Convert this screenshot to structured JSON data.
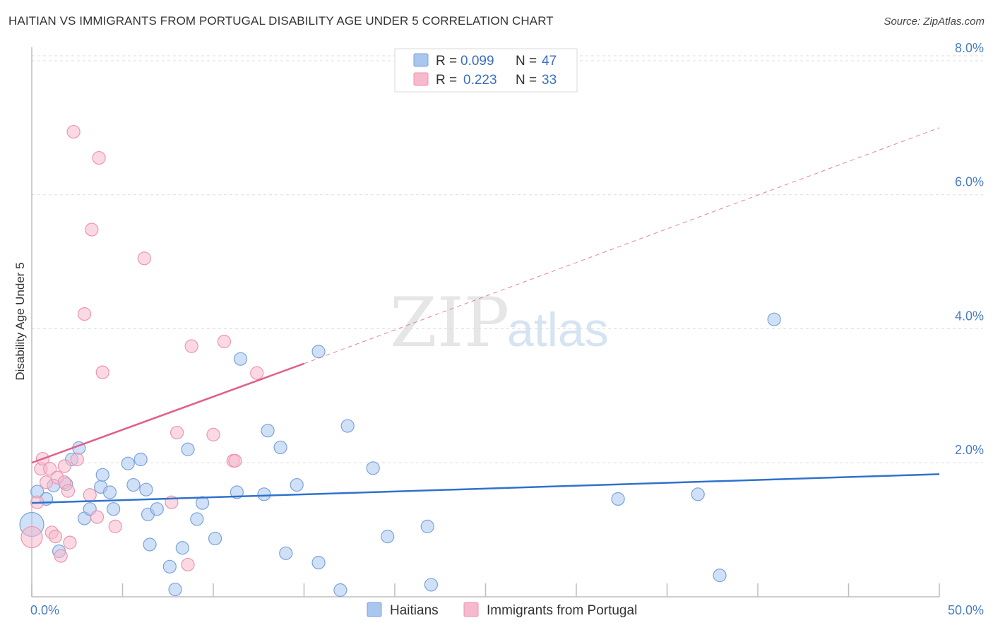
{
  "header": {
    "title": "HAITIAN VS IMMIGRANTS FROM PORTUGAL DISABILITY AGE UNDER 5 CORRELATION CHART",
    "source": "Source: ZipAtlas.com"
  },
  "watermark": {
    "part1": "ZIP",
    "part2": "atlas"
  },
  "legend": {
    "r_label": "R =",
    "n_label": "N =",
    "rows": [
      {
        "r": "0.099",
        "n": "47"
      },
      {
        "r": "0.223",
        "n": "33"
      }
    ]
  },
  "colors": {
    "haitians_fill": "#a9c6ee",
    "haitians_stroke": "#7aa3dd",
    "haitians_line": "#2f72cc",
    "portugal_fill": "#f7b9cc",
    "portugal_stroke": "#ee94b0",
    "portugal_line": "#e0608c",
    "axis_text": "#4a7cc4",
    "grid": "#dddddd"
  },
  "chart_data": {
    "type": "scatter",
    "title": "HAITIAN VS IMMIGRANTS FROM PORTUGAL DISABILITY AGE UNDER 5 CORRELATION CHART",
    "xlabel": "",
    "ylabel": "Disability Age Under 5",
    "xlim": [
      0,
      50
    ],
    "ylim": [
      0,
      8.2
    ],
    "x_tick_labels": [
      {
        "value": 0,
        "label": "0.0%"
      },
      {
        "value": 50,
        "label": "50.0%"
      }
    ],
    "y_tick_labels": [
      {
        "value": 2,
        "label": "2.0%"
      },
      {
        "value": 4,
        "label": "4.0%"
      },
      {
        "value": 6,
        "label": "6.0%"
      },
      {
        "value": 8,
        "label": "8.0%"
      }
    ],
    "grid": true,
    "legend_position": "top-center",
    "series": [
      {
        "name": "Haitians",
        "color": "#a9c6ee",
        "r": 0.099,
        "n": 47,
        "trend": {
          "x": [
            0,
            50
          ],
          "y": [
            1.4,
            1.83
          ],
          "style": "solid"
        },
        "points": [
          [
            0.0,
            1.08
          ],
          [
            0.3,
            1.57
          ],
          [
            0.8,
            1.46
          ],
          [
            1.2,
            1.66
          ],
          [
            1.5,
            0.68
          ],
          [
            1.9,
            1.68
          ],
          [
            2.2,
            2.05
          ],
          [
            2.6,
            2.22
          ],
          [
            2.9,
            1.17
          ],
          [
            3.2,
            1.31
          ],
          [
            3.8,
            1.64
          ],
          [
            3.9,
            1.82
          ],
          [
            4.3,
            1.56
          ],
          [
            4.5,
            1.31
          ],
          [
            5.3,
            1.99
          ],
          [
            5.6,
            1.67
          ],
          [
            6.0,
            2.05
          ],
          [
            6.3,
            1.6
          ],
          [
            6.4,
            1.23
          ],
          [
            6.5,
            0.78
          ],
          [
            6.9,
            1.31
          ],
          [
            7.6,
            0.45
          ],
          [
            7.9,
            0.11
          ],
          [
            8.3,
            0.73
          ],
          [
            8.6,
            2.2
          ],
          [
            9.1,
            1.16
          ],
          [
            9.4,
            1.4
          ],
          [
            10.1,
            0.87
          ],
          [
            11.3,
            1.56
          ],
          [
            11.5,
            3.55
          ],
          [
            12.8,
            1.53
          ],
          [
            13.0,
            2.48
          ],
          [
            13.7,
            2.23
          ],
          [
            14.0,
            0.65
          ],
          [
            14.6,
            1.67
          ],
          [
            15.8,
            3.66
          ],
          [
            15.8,
            0.51
          ],
          [
            17.0,
            0.1
          ],
          [
            17.4,
            2.55
          ],
          [
            18.8,
            1.92
          ],
          [
            19.6,
            0.9
          ],
          [
            21.8,
            1.05
          ],
          [
            22.0,
            0.18
          ],
          [
            32.3,
            1.46
          ],
          [
            36.7,
            1.53
          ],
          [
            37.9,
            0.32
          ],
          [
            40.9,
            4.14
          ]
        ]
      },
      {
        "name": "Immigrants from Portugal",
        "color": "#f7b9cc",
        "r": 0.223,
        "n": 33,
        "trend": {
          "x": [
            0,
            15
          ],
          "y": [
            2.0,
            3.48
          ],
          "style": "solid",
          "extended_x": [
            15,
            50
          ],
          "extended_y": [
            3.48,
            7.0
          ],
          "extended_style": "dashed"
        },
        "points": [
          [
            0.0,
            0.89
          ],
          [
            0.3,
            1.41
          ],
          [
            0.5,
            1.91
          ],
          [
            0.6,
            2.06
          ],
          [
            0.8,
            1.71
          ],
          [
            1.0,
            1.91
          ],
          [
            1.1,
            0.96
          ],
          [
            1.3,
            0.9
          ],
          [
            1.4,
            1.78
          ],
          [
            1.6,
            0.61
          ],
          [
            1.8,
            1.95
          ],
          [
            1.8,
            1.71
          ],
          [
            2.0,
            1.58
          ],
          [
            2.1,
            0.81
          ],
          [
            2.3,
            6.94
          ],
          [
            2.9,
            4.22
          ],
          [
            3.2,
            1.52
          ],
          [
            3.3,
            5.48
          ],
          [
            3.6,
            1.19
          ],
          [
            3.7,
            6.55
          ],
          [
            3.9,
            3.35
          ],
          [
            4.6,
            1.05
          ],
          [
            6.2,
            5.05
          ],
          [
            7.7,
            1.41
          ],
          [
            8.0,
            2.45
          ],
          [
            8.6,
            0.48
          ],
          [
            8.8,
            3.74
          ],
          [
            10.0,
            2.42
          ],
          [
            10.6,
            3.81
          ],
          [
            11.1,
            2.03
          ],
          [
            11.2,
            2.03
          ],
          [
            12.4,
            3.34
          ],
          [
            2.5,
            2.05
          ]
        ]
      }
    ]
  },
  "bottom_legend": [
    {
      "label": "Haitians"
    },
    {
      "label": "Immigrants from Portugal"
    }
  ]
}
